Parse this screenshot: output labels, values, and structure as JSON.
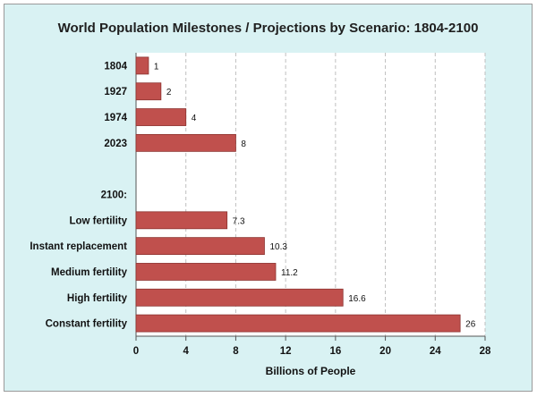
{
  "title": "World Population Milestones / Projections by Scenario: 1804-2100",
  "colors": {
    "background": "#d9f2f3",
    "plot": "#ffffff",
    "bar": "#c0504d",
    "bar_edge": "#8c3330",
    "grid": "#bfbfbf"
  },
  "chart_data": {
    "type": "bar",
    "orientation": "horizontal",
    "categories": [
      "1804",
      "1927",
      "1974",
      "2023",
      "",
      "2100:",
      "Low fertility",
      "Instant replacement",
      "Medium fertility",
      "High fertility",
      "Constant fertility"
    ],
    "values": [
      1,
      2,
      4,
      8,
      null,
      null,
      7.3,
      10.3,
      11.2,
      16.6,
      26
    ],
    "data_labels": [
      "1",
      "2",
      "4",
      "8",
      "",
      "",
      "7.3",
      "10.3",
      "11.2",
      "16.6",
      "26"
    ],
    "xlabel": "Billions of People",
    "ylabel": "",
    "xlim": [
      0,
      28
    ],
    "xticks": [
      0,
      4,
      8,
      12,
      16,
      20,
      24,
      28
    ],
    "grid": "vertical-dashed",
    "legend": "none"
  }
}
